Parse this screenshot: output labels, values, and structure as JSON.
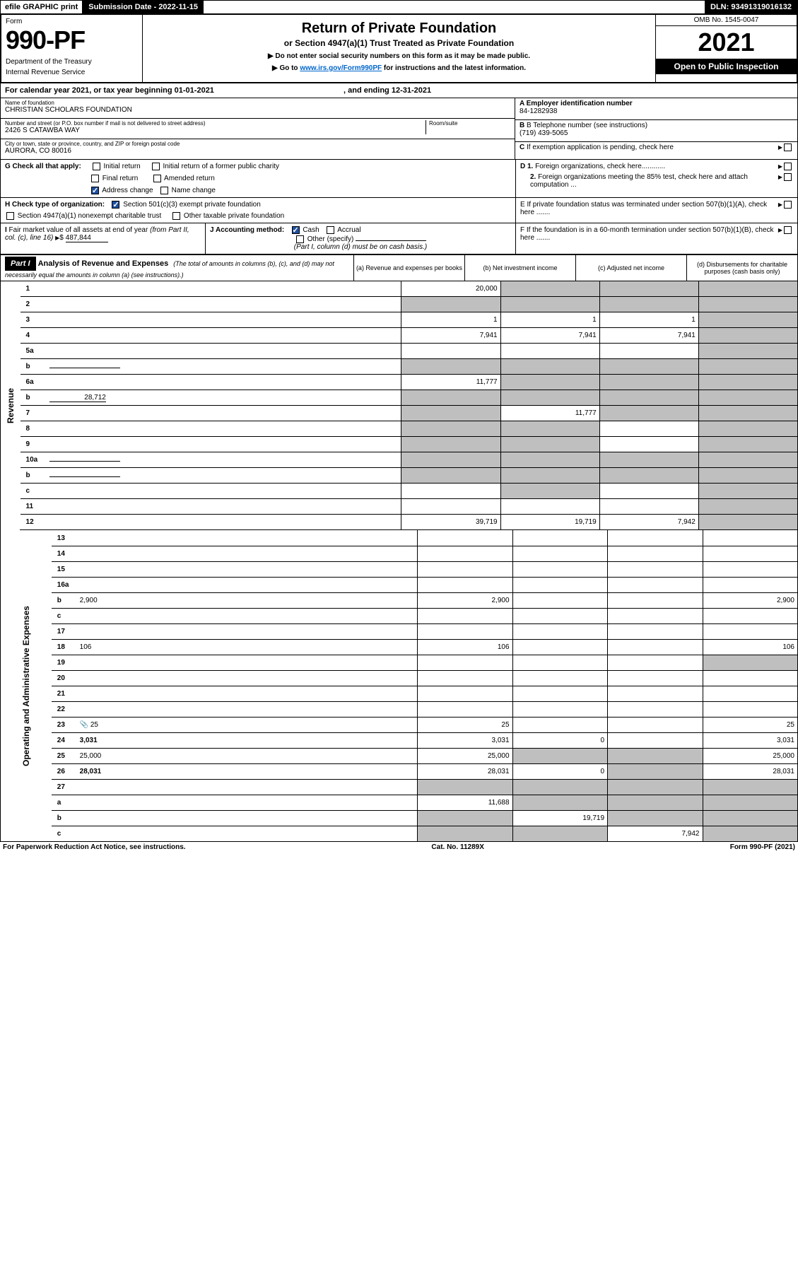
{
  "topbar": {
    "eprint": "efile GRAPHIC print",
    "subdate": "Submission Date - 2022-11-15",
    "dln": "DLN: 93491319016132"
  },
  "hdr": {
    "form_word": "Form",
    "form_no": "990-PF",
    "dept": "Department of the Treasury",
    "irs": "Internal Revenue Service",
    "title": "Return of Private Foundation",
    "subtitle": "or Section 4947(a)(1) Trust Treated as Private Foundation",
    "note1": "▶ Do not enter social security numbers on this form as it may be made public.",
    "note2_pre": "▶ Go to ",
    "note2_link": "www.irs.gov/Form990PF",
    "note2_post": " for instructions and the latest information.",
    "omb": "OMB No. 1545-0047",
    "year": "2021",
    "open": "Open to Public Inspection"
  },
  "calyear": {
    "pre": "For calendar year 2021, or tax year beginning ",
    "begin": "01-01-2021",
    "mid": " , and ending ",
    "end": "12-31-2021"
  },
  "entity": {
    "name_label": "Name of foundation",
    "name": "CHRISTIAN SCHOLARS FOUNDATION",
    "addr_label": "Number and street (or P.O. box number if mail is not delivered to street address)",
    "addr": "2426 S CATAWBA WAY",
    "room_label": "Room/suite",
    "city_label": "City or town, state or province, country, and ZIP or foreign postal code",
    "city": "AURORA, CO  80016",
    "a_label": "A Employer identification number",
    "a_val": "84-1282938",
    "b_label": "B Telephone number (see instructions)",
    "b_val": "(719) 439-5065",
    "c_label": "C If exemption application is pending, check here"
  },
  "checks": {
    "g_label": "G Check all that apply:",
    "g_initial": "Initial return",
    "g_initial_former": "Initial return of a former public charity",
    "g_final": "Final return",
    "g_amended": "Amended return",
    "g_addr": "Address change",
    "g_name": "Name change",
    "h_label": "H Check type of organization:",
    "h_501c3": "Section 501(c)(3) exempt private foundation",
    "h_4947": "Section 4947(a)(1) nonexempt charitable trust",
    "h_other": "Other taxable private foundation",
    "i_label": "I Fair market value of all assets at end of year (from Part II, col. (c), line 16)",
    "i_arrow": "▶ $",
    "i_val": "487,844",
    "j_label": "J Accounting method:",
    "j_cash": "Cash",
    "j_accrual": "Accrual",
    "j_other": "Other (specify)",
    "j_note": "(Part I, column (d) must be on cash basis.)",
    "d1": "D 1. Foreign organizations, check here............",
    "d2": "2. Foreign organizations meeting the 85% test, check here and attach computation ...",
    "e": "E  If private foundation status was terminated under section 507(b)(1)(A), check here .......",
    "f": "F  If the foundation is in a 60-month termination under section 507(b)(1)(B), check here .......",
    "arrow": "▶"
  },
  "part1": {
    "label": "Part I",
    "title": "Analysis of Revenue and Expenses",
    "title_note": " (The total of amounts in columns (b), (c), and (d) may not necessarily equal the amounts in column (a) (see instructions).)",
    "col_a": "(a)  Revenue and expenses per books",
    "col_b": "(b)  Net investment income",
    "col_c": "(c)  Adjusted net income",
    "col_d": "(d)  Disbursements for charitable purposes (cash basis only)"
  },
  "side": {
    "revenue": "Revenue",
    "expenses": "Operating and Administrative Expenses"
  },
  "rows": [
    {
      "n": "1",
      "d": "",
      "a": "20,000",
      "b": "",
      "c": "",
      "grey": [
        "b",
        "c",
        "d"
      ]
    },
    {
      "n": "2",
      "d": "",
      "a": "",
      "b": "",
      "c": "",
      "grey": [
        "a",
        "b",
        "c",
        "d"
      ],
      "bold_not": true
    },
    {
      "n": "3",
      "d": "",
      "a": "1",
      "b": "1",
      "c": "1",
      "grey": [
        "d"
      ]
    },
    {
      "n": "4",
      "d": "",
      "a": "7,941",
      "b": "7,941",
      "c": "7,941",
      "grey": [
        "d"
      ]
    },
    {
      "n": "5a",
      "d": "",
      "a": "",
      "b": "",
      "c": "",
      "grey": [
        "d"
      ]
    },
    {
      "n": "b",
      "d": "",
      "a": "",
      "b": "",
      "c": "",
      "grey": [
        "a",
        "b",
        "c",
        "d"
      ],
      "inline_box": true
    },
    {
      "n": "6a",
      "d": "",
      "a": "11,777",
      "b": "",
      "c": "",
      "grey": [
        "b",
        "c",
        "d"
      ]
    },
    {
      "n": "b",
      "d": "",
      "a": "",
      "b": "",
      "c": "",
      "grey": [
        "a",
        "b",
        "c",
        "d"
      ],
      "inline_val": "28,712"
    },
    {
      "n": "7",
      "d": "",
      "a": "",
      "b": "11,777",
      "c": "",
      "grey": [
        "a",
        "c",
        "d"
      ]
    },
    {
      "n": "8",
      "d": "",
      "a": "",
      "b": "",
      "c": "",
      "grey": [
        "a",
        "b",
        "d"
      ]
    },
    {
      "n": "9",
      "d": "",
      "a": "",
      "b": "",
      "c": "",
      "grey": [
        "a",
        "b",
        "d"
      ]
    },
    {
      "n": "10a",
      "d": "",
      "a": "",
      "b": "",
      "c": "",
      "grey": [
        "a",
        "b",
        "c",
        "d"
      ],
      "inline_box": true
    },
    {
      "n": "b",
      "d": "",
      "a": "",
      "b": "",
      "c": "",
      "grey": [
        "a",
        "b",
        "c",
        "d"
      ],
      "inline_box": true
    },
    {
      "n": "c",
      "d": "",
      "a": "",
      "b": "",
      "c": "",
      "grey": [
        "b",
        "d"
      ]
    },
    {
      "n": "11",
      "d": "",
      "a": "",
      "b": "",
      "c": "",
      "grey": [
        "d"
      ]
    },
    {
      "n": "12",
      "d": "",
      "a": "39,719",
      "b": "19,719",
      "c": "7,942",
      "grey": [
        "d"
      ],
      "bold": true
    }
  ],
  "rows2": [
    {
      "n": "13",
      "d": "",
      "a": "",
      "b": "",
      "c": ""
    },
    {
      "n": "14",
      "d": "",
      "a": "",
      "b": "",
      "c": ""
    },
    {
      "n": "15",
      "d": "",
      "a": "",
      "b": "",
      "c": ""
    },
    {
      "n": "16a",
      "d": "",
      "a": "",
      "b": "",
      "c": ""
    },
    {
      "n": "b",
      "d": "2,900",
      "a": "2,900",
      "b": "",
      "c": ""
    },
    {
      "n": "c",
      "d": "",
      "a": "",
      "b": "",
      "c": ""
    },
    {
      "n": "17",
      "d": "",
      "a": "",
      "b": "",
      "c": ""
    },
    {
      "n": "18",
      "d": "106",
      "a": "106",
      "b": "",
      "c": ""
    },
    {
      "n": "19",
      "d": "",
      "a": "",
      "b": "",
      "c": "",
      "grey": [
        "d"
      ]
    },
    {
      "n": "20",
      "d": "",
      "a": "",
      "b": "",
      "c": ""
    },
    {
      "n": "21",
      "d": "",
      "a": "",
      "b": "",
      "c": ""
    },
    {
      "n": "22",
      "d": "",
      "a": "",
      "b": "",
      "c": ""
    },
    {
      "n": "23",
      "d": "25",
      "a": "25",
      "b": "",
      "c": "",
      "icon": true
    },
    {
      "n": "24",
      "d": "3,031",
      "a": "3,031",
      "b": "0",
      "c": "",
      "bold": true
    },
    {
      "n": "25",
      "d": "25,000",
      "a": "25,000",
      "b": "",
      "c": "",
      "grey": [
        "b",
        "c"
      ]
    },
    {
      "n": "26",
      "d": "28,031",
      "a": "28,031",
      "b": "0",
      "c": "",
      "bold": true,
      "grey": [
        "c"
      ]
    },
    {
      "n": "27",
      "d": "",
      "a": "",
      "b": "",
      "c": "",
      "grey": [
        "a",
        "b",
        "c",
        "d"
      ]
    },
    {
      "n": "a",
      "d": "",
      "a": "11,688",
      "b": "",
      "c": "",
      "bold": true,
      "grey": [
        "b",
        "c",
        "d"
      ]
    },
    {
      "n": "b",
      "d": "",
      "a": "",
      "b": "19,719",
      "c": "",
      "bold": true,
      "grey": [
        "a",
        "c",
        "d"
      ]
    },
    {
      "n": "c",
      "d": "",
      "a": "",
      "b": "",
      "c": "7,942",
      "bold": true,
      "grey": [
        "a",
        "b",
        "d"
      ]
    }
  ],
  "footer": {
    "left": "For Paperwork Reduction Act Notice, see instructions.",
    "mid": "Cat. No. 11289X",
    "right": "Form 990-PF (2021)"
  }
}
